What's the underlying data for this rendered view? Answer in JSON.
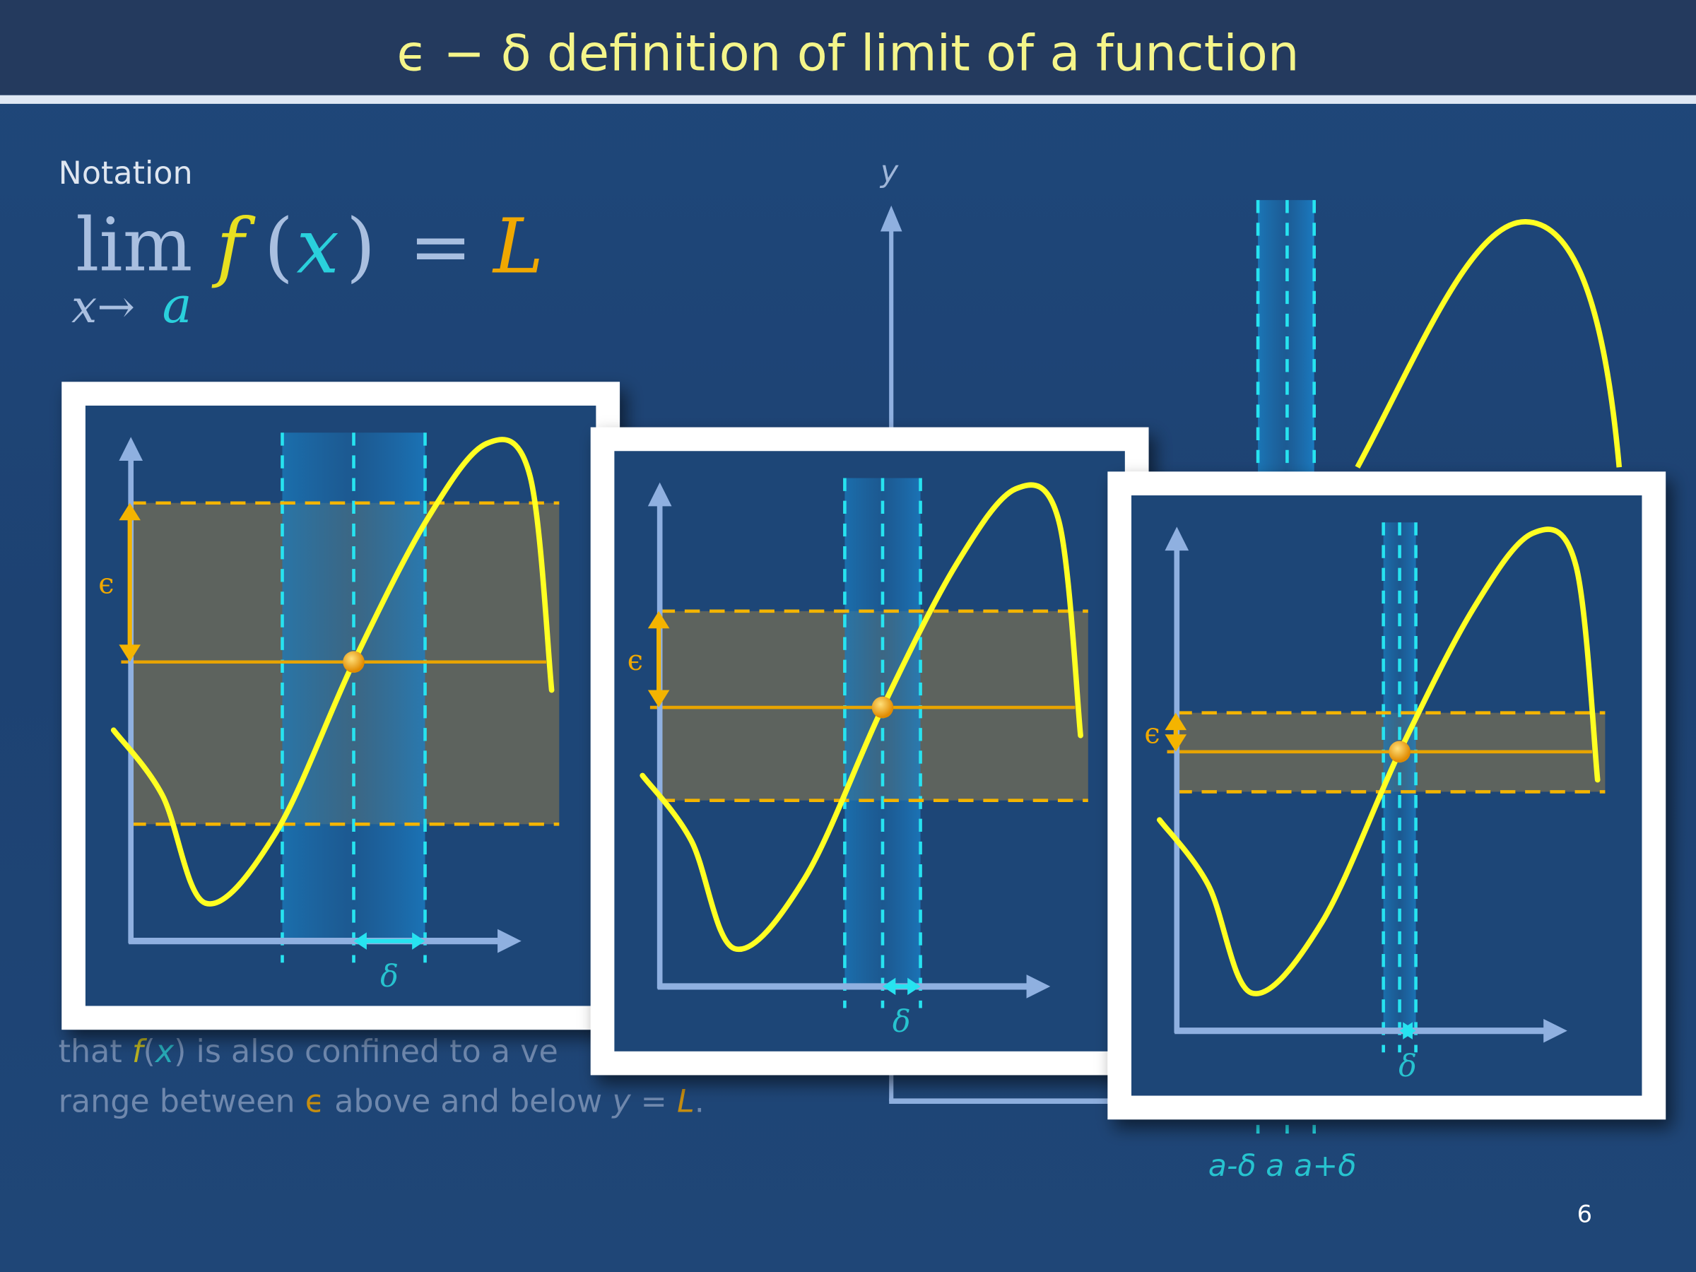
{
  "slide": {
    "title": "ϵ − δ definition of limit of a function",
    "notation_label": "Notation",
    "formula": {
      "lim": "lim",
      "sub_x": "x→",
      "sub_a": "a",
      "f": "f",
      "open": "(",
      "x": "x",
      "close": ")",
      "eq": "=",
      "L": "L"
    },
    "body_line1": {
      "pre": "that ",
      "f": "f",
      "p1": "(",
      "x": "x",
      "p2": ")",
      "post": " is also confined to a ve"
    },
    "body_line2": {
      "pre": "range between ",
      "eps": "ϵ",
      "mid": " above and below ",
      "y": "y",
      "eq": " = ",
      "L": "L",
      "end": "."
    },
    "y_axis_label": "y",
    "tick_labels": "a-δ a a+δ",
    "page_number": "6"
  },
  "panels": [
    {
      "epsilon_label": "ϵ",
      "delta_label": "δ"
    },
    {
      "epsilon_label": "ϵ",
      "delta_label": "δ"
    },
    {
      "epsilon_label": "ϵ",
      "delta_label": "δ"
    }
  ],
  "colors": {
    "background": "#1d4374",
    "title_bar": "#243a5e",
    "title_text": "#f5f58a",
    "curve": "#ffff22",
    "epsilon": "#f4b400",
    "delta": "#27e3f0",
    "axis": "#8fb0e0",
    "frame": "#ffffff"
  }
}
